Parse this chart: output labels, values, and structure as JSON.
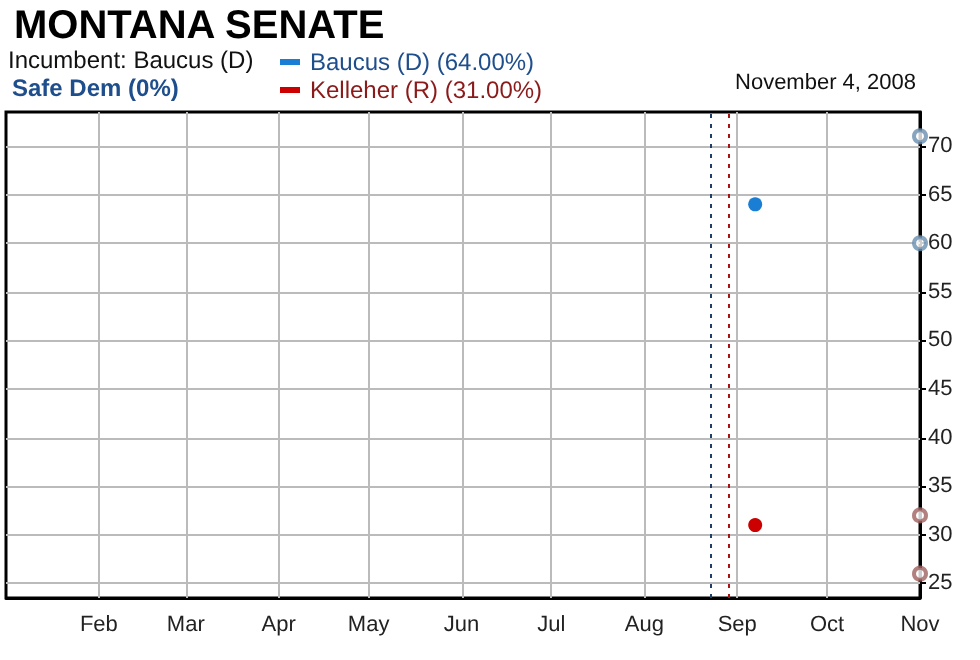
{
  "chart_data": {
    "type": "line",
    "title": "MONTANA SENATE",
    "subtitle": "Incumbent: Baucus (D)",
    "annotations": [
      "Safe Dem (0%)",
      "November 4, 2008"
    ],
    "xlim": [
      "2008-01-01",
      "2008-11-01"
    ],
    "xticks": [
      {
        "value": "2008-02-01",
        "label": "Feb"
      },
      {
        "value": "2008-03-01",
        "label": "Mar"
      },
      {
        "value": "2008-04-01",
        "label": "Apr"
      },
      {
        "value": "2008-05-01",
        "label": "May"
      },
      {
        "value": "2008-06-01",
        "label": "Jun"
      },
      {
        "value": "2008-07-01",
        "label": "Jul"
      },
      {
        "value": "2008-08-01",
        "label": "Aug"
      },
      {
        "value": "2008-09-01",
        "label": "Sep"
      },
      {
        "value": "2008-10-01",
        "label": "Oct"
      },
      {
        "value": "2008-11-01",
        "label": "Nov"
      }
    ],
    "ylim": [
      23.5,
      73.5
    ],
    "yticks": [
      25,
      30,
      35,
      40,
      45,
      50,
      55,
      60,
      65,
      70
    ],
    "series": [
      {
        "name": "Baucus (D) (64.00%)",
        "color": "#1a7fd4",
        "x": [
          "2008-09-07"
        ],
        "values": [
          64
        ]
      },
      {
        "name": "Kelleher (R) (31.00%)",
        "color": "#cc0000",
        "x": [
          "2008-09-07"
        ],
        "values": [
          31
        ]
      },
      {
        "type": "scatter",
        "color": "#6a8fb0",
        "x": [
          "2008-11-01",
          "2008-11-01"
        ],
        "values": [
          71,
          60
        ]
      },
      {
        "type": "scatter",
        "color": "#a06060",
        "x": [
          "2008-11-01",
          "2008-11-01"
        ],
        "values": [
          32,
          26
        ]
      }
    ],
    "ref_lines": [
      {
        "axis": "x",
        "value": "2008-08-23",
        "color": "#1f3f6a",
        "line_style": "dotted"
      },
      {
        "axis": "x",
        "value": "2008-08-29",
        "color": "#aa1111",
        "line_style": "dotted"
      }
    ],
    "marker": "circle",
    "grid": true,
    "legend": "top left"
  }
}
